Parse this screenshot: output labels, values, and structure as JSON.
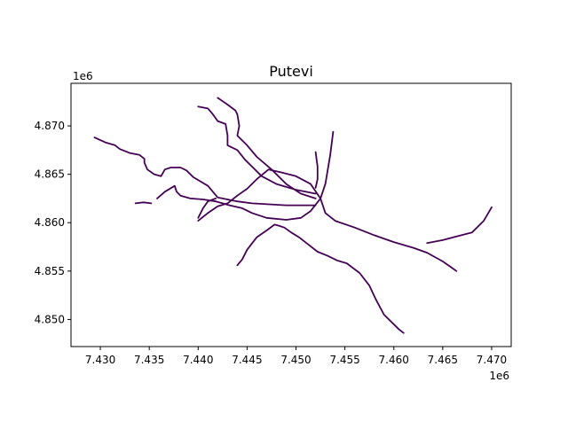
{
  "chart_data": {
    "type": "map",
    "title": "Putevi",
    "x_offset_label": "1e6",
    "y_offset_label": "1e6",
    "xlim": [
      7.427,
      7.472
    ],
    "ylim": [
      4.8472,
      4.8744
    ],
    "x_ticks": [
      "7.430",
      "7.435",
      "7.440",
      "7.445",
      "7.450",
      "7.455",
      "7.460",
      "7.465",
      "7.470"
    ],
    "y_ticks": [
      "4.850",
      "4.855",
      "4.860",
      "4.865",
      "4.870"
    ],
    "x_tick_values": [
      7.43,
      7.435,
      7.44,
      7.445,
      7.45,
      7.455,
      7.46,
      7.465,
      7.47
    ],
    "y_tick_values": [
      4.85,
      4.855,
      4.86,
      4.865,
      4.87
    ],
    "line_color": "#440154",
    "roads": [
      [
        [
          7.4294,
          4.8688
        ],
        [
          7.4305,
          4.8683
        ],
        [
          7.4315,
          4.868
        ],
        [
          7.432,
          4.8676
        ],
        [
          7.433,
          4.8672
        ],
        [
          7.434,
          4.867
        ],
        [
          7.4345,
          4.8666
        ],
        [
          7.4345,
          4.8662
        ],
        [
          7.4348,
          4.8655
        ],
        [
          7.4355,
          4.865
        ],
        [
          7.4362,
          4.8648
        ],
        [
          7.4366,
          4.8655
        ],
        [
          7.4372,
          4.8657
        ],
        [
          7.4382,
          4.8657
        ],
        [
          7.4388,
          4.8654
        ],
        [
          7.4395,
          4.8647
        ],
        [
          7.441,
          4.8638
        ],
        [
          7.442,
          4.8626
        ],
        [
          7.444,
          4.8622
        ],
        [
          7.4455,
          4.862
        ],
        [
          7.449,
          4.8618
        ],
        [
          7.452,
          4.8618
        ]
      ],
      [
        [
          7.4336,
          4.862
        ],
        [
          7.4344,
          4.8621
        ],
        [
          7.4352,
          4.862
        ]
      ],
      [
        [
          7.4358,
          4.8625
        ],
        [
          7.4366,
          4.8632
        ],
        [
          7.4376,
          4.8638
        ],
        [
          7.4378,
          4.8632
        ],
        [
          7.4382,
          4.8628
        ],
        [
          7.4392,
          4.8625
        ],
        [
          7.4405,
          4.8624
        ],
        [
          7.4418,
          4.8622
        ]
      ],
      [
        [
          7.442,
          4.8729
        ],
        [
          7.443,
          4.8722
        ],
        [
          7.4438,
          4.8716
        ],
        [
          7.444,
          4.8712
        ],
        [
          7.4442,
          4.87
        ],
        [
          7.444,
          4.869
        ],
        [
          7.445,
          4.868
        ],
        [
          7.446,
          4.8668
        ],
        [
          7.4475,
          4.8655
        ],
        [
          7.449,
          4.864
        ],
        [
          7.4505,
          4.863
        ],
        [
          7.452,
          4.8625
        ]
      ],
      [
        [
          7.44,
          4.872
        ],
        [
          7.441,
          4.8718
        ],
        [
          7.4415,
          4.8712
        ],
        [
          7.442,
          4.8705
        ],
        [
          7.4428,
          4.8702
        ],
        [
          7.443,
          4.869
        ],
        [
          7.443,
          4.868
        ],
        [
          7.444,
          4.8675
        ],
        [
          7.4448,
          4.8665
        ],
        [
          7.4455,
          4.8658
        ],
        [
          7.4465,
          4.8648
        ],
        [
          7.448,
          4.864
        ],
        [
          7.45,
          4.8634
        ],
        [
          7.452,
          4.863
        ]
      ],
      [
        [
          7.4418,
          4.8622
        ],
        [
          7.4432,
          4.8618
        ],
        [
          7.4445,
          4.8615
        ],
        [
          7.4455,
          4.861
        ],
        [
          7.447,
          4.8605
        ],
        [
          7.449,
          4.8603
        ],
        [
          7.4505,
          4.8605
        ],
        [
          7.4515,
          4.8612
        ],
        [
          7.4525,
          4.8625
        ],
        [
          7.453,
          4.864
        ],
        [
          7.4535,
          4.867
        ],
        [
          7.4538,
          4.8694
        ]
      ],
      [
        [
          7.44,
          4.8602
        ],
        [
          7.441,
          4.861
        ],
        [
          7.442,
          4.8617
        ],
        [
          7.443,
          4.862
        ],
        [
          7.444,
          4.8628
        ],
        [
          7.445,
          4.8635
        ],
        [
          7.446,
          4.8645
        ],
        [
          7.4472,
          4.8655
        ],
        [
          7.4485,
          4.8652
        ],
        [
          7.45,
          4.8648
        ],
        [
          7.4515,
          4.864
        ],
        [
          7.4525,
          4.8625
        ],
        [
          7.453,
          4.861
        ],
        [
          7.454,
          4.8602
        ],
        [
          7.456,
          4.8595
        ],
        [
          7.458,
          4.8587
        ],
        [
          7.46,
          4.858
        ],
        [
          7.462,
          4.8574
        ],
        [
          7.4634,
          4.8569
        ],
        [
          7.465,
          4.856
        ],
        [
          7.466,
          4.8553
        ],
        [
          7.4664,
          4.855
        ]
      ],
      [
        [
          7.4634,
          4.8579
        ],
        [
          7.465,
          4.8582
        ],
        [
          7.4665,
          4.8586
        ],
        [
          7.468,
          4.859
        ],
        [
          7.4685,
          4.8595
        ],
        [
          7.4692,
          4.8602
        ],
        [
          7.47,
          4.8616
        ]
      ],
      [
        [
          7.444,
          4.8556
        ],
        [
          7.4445,
          4.8562
        ],
        [
          7.445,
          4.8572
        ],
        [
          7.446,
          4.8585
        ],
        [
          7.447,
          4.8592
        ],
        [
          7.4478,
          4.8598
        ],
        [
          7.4482,
          4.8597
        ],
        [
          7.4488,
          4.8595
        ],
        [
          7.4495,
          4.859
        ],
        [
          7.4503,
          4.8585
        ],
        [
          7.4512,
          4.8578
        ],
        [
          7.4522,
          4.857
        ],
        [
          7.4532,
          4.8566
        ],
        [
          7.4542,
          4.8561
        ],
        [
          7.4552,
          4.8558
        ],
        [
          7.4565,
          4.8548
        ],
        [
          7.4575,
          4.8535
        ],
        [
          7.4582,
          4.852
        ],
        [
          7.459,
          4.8505
        ],
        [
          7.4605,
          4.849
        ],
        [
          7.461,
          4.8486
        ]
      ],
      [
        [
          7.452,
          4.8636
        ],
        [
          7.4522,
          4.8645
        ],
        [
          7.4522,
          4.8658
        ],
        [
          7.452,
          4.8673
        ]
      ],
      [
        [
          7.44,
          4.8605
        ],
        [
          7.4405,
          4.8615
        ],
        [
          7.441,
          4.8622
        ],
        [
          7.4418,
          4.8625
        ]
      ]
    ]
  }
}
